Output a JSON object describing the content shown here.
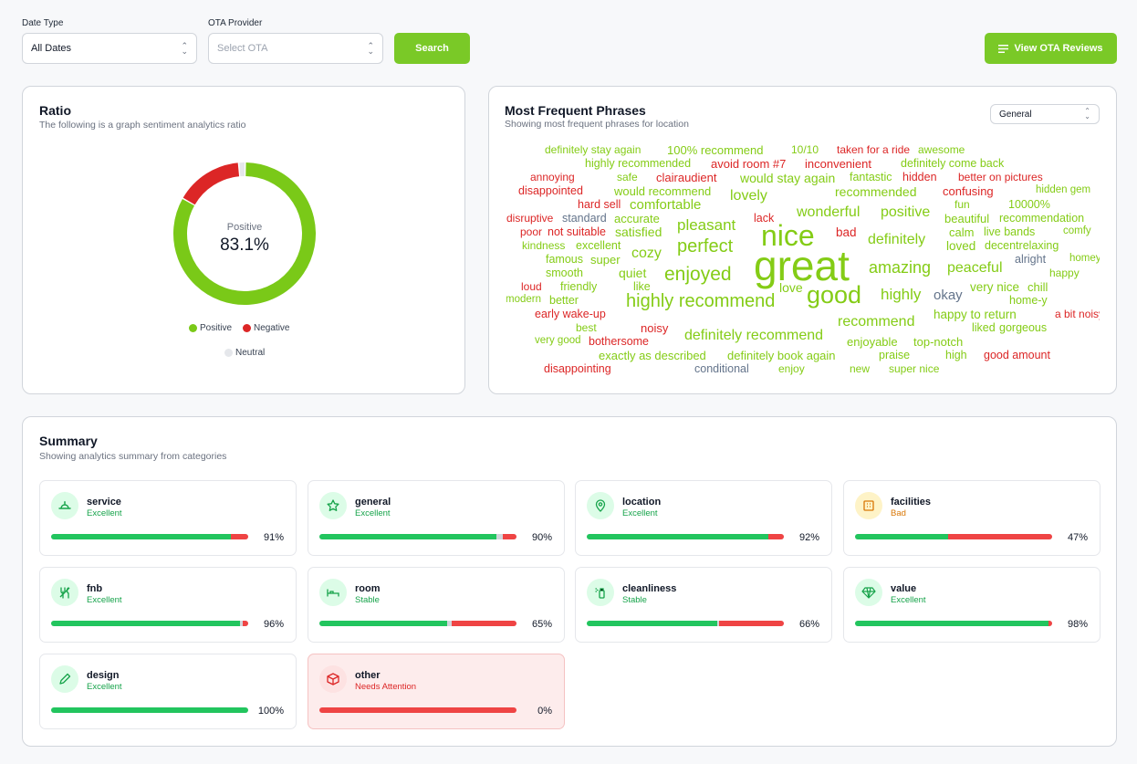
{
  "filters": {
    "date_type_label": "Date Type",
    "date_type_value": "All Dates",
    "ota_label": "OTA Provider",
    "ota_placeholder": "Select OTA",
    "search_label": "Search",
    "view_reviews_label": "View OTA Reviews"
  },
  "ratio": {
    "title": "Ratio",
    "subtitle": "The following is a graph sentiment analytics ratio",
    "center_label": "Positive",
    "center_value": "83.1%",
    "legend": [
      {
        "label": "Positive",
        "color": "#7ac918"
      },
      {
        "label": "Negative",
        "color": "#dc2626"
      },
      {
        "label": "Neutral",
        "color": "#e5e7eb"
      }
    ]
  },
  "chart_data": {
    "type": "pie",
    "style": "donut",
    "slices": [
      {
        "label": "Positive",
        "value": 83.1,
        "color": "#7ac918"
      },
      {
        "label": "Negative",
        "value": 15.4,
        "color": "#dc2626"
      },
      {
        "label": "Neutral",
        "value": 1.5,
        "color": "#e5e7eb"
      }
    ]
  },
  "phrases": {
    "title": "Most Frequent Phrases",
    "subtitle": "Showing most frequent phrases for location",
    "filter_value": "General",
    "colors": {
      "positive": "#84cc16",
      "negative": "#dc2626",
      "neutral": "#64748b"
    },
    "words": [
      {
        "t": "definitely stay again",
        "s": "positive",
        "w": 12
      },
      {
        "t": "100% recommend",
        "s": "positive",
        "w": 13
      },
      {
        "t": "10/10",
        "s": "positive",
        "w": 12
      },
      {
        "t": "taken for a ride",
        "s": "negative",
        "w": 12
      },
      {
        "t": "awesome",
        "s": "positive",
        "w": 12
      },
      {
        "t": "highly recommended",
        "s": "positive",
        "w": 12.5
      },
      {
        "t": "avoid room #7",
        "s": "negative",
        "w": 13
      },
      {
        "t": "inconvenient",
        "s": "negative",
        "w": 13
      },
      {
        "t": "definitely come back",
        "s": "positive",
        "w": 12.5
      },
      {
        "t": "annoying",
        "s": "negative",
        "w": 12
      },
      {
        "t": "safe",
        "s": "positive",
        "w": 12
      },
      {
        "t": "clairaudient",
        "s": "negative",
        "w": 13
      },
      {
        "t": "would stay again",
        "s": "positive",
        "w": 14
      },
      {
        "t": "fantastic",
        "s": "positive",
        "w": 12.5
      },
      {
        "t": "hidden",
        "s": "negative",
        "w": 12.5
      },
      {
        "t": "better on pictures",
        "s": "negative",
        "w": 12
      },
      {
        "t": "disappointed",
        "s": "negative",
        "w": 12.5
      },
      {
        "t": "would recommend",
        "s": "positive",
        "w": 13
      },
      {
        "t": "lovely",
        "s": "positive",
        "w": 16
      },
      {
        "t": "recommended",
        "s": "positive",
        "w": 14
      },
      {
        "t": "confusing",
        "s": "negative",
        "w": 13
      },
      {
        "t": "hidden gem",
        "s": "positive",
        "w": 11.5
      },
      {
        "t": "hard sell",
        "s": "negative",
        "w": 12.5
      },
      {
        "t": "comfortable",
        "s": "positive",
        "w": 15
      },
      {
        "t": "fun",
        "s": "positive",
        "w": 12
      },
      {
        "t": "10000%",
        "s": "positive",
        "w": 12.5
      },
      {
        "t": "disruptive",
        "s": "negative",
        "w": 12
      },
      {
        "t": "standard",
        "s": "neutral",
        "w": 12.5
      },
      {
        "t": "accurate",
        "s": "positive",
        "w": 13
      },
      {
        "t": "lack",
        "s": "negative",
        "w": 12.5
      },
      {
        "t": "wonderful",
        "s": "positive",
        "w": 16
      },
      {
        "t": "positive",
        "s": "positive",
        "w": 16
      },
      {
        "t": "beautiful",
        "s": "positive",
        "w": 13
      },
      {
        "t": "recommendation",
        "s": "positive",
        "w": 12.5
      },
      {
        "t": "poor",
        "s": "negative",
        "w": 12
      },
      {
        "t": "not suitable",
        "s": "negative",
        "w": 12.5
      },
      {
        "t": "satisfied",
        "s": "positive",
        "w": 14
      },
      {
        "t": "pleasant",
        "s": "positive",
        "w": 17
      },
      {
        "t": "nice",
        "s": "positive",
        "w": 32
      },
      {
        "t": "bad",
        "s": "negative",
        "w": 13.5
      },
      {
        "t": "calm",
        "s": "positive",
        "w": 13
      },
      {
        "t": "live bands",
        "s": "positive",
        "w": 12.5
      },
      {
        "t": "comfy",
        "s": "positive",
        "w": 11.5
      },
      {
        "t": "kindness",
        "s": "positive",
        "w": 12
      },
      {
        "t": "excellent",
        "s": "positive",
        "w": 12.5
      },
      {
        "t": "perfect",
        "s": "positive",
        "w": 20
      },
      {
        "t": "definitely",
        "s": "positive",
        "w": 16
      },
      {
        "t": "loved",
        "s": "positive",
        "w": 13.5
      },
      {
        "t": "decentrelaxing",
        "s": "positive",
        "w": 12.5
      },
      {
        "t": "cozy",
        "s": "positive",
        "w": 16
      },
      {
        "t": "famous",
        "s": "positive",
        "w": 12.5
      },
      {
        "t": "super",
        "s": "positive",
        "w": 13
      },
      {
        "t": "great",
        "s": "positive",
        "w": 46
      },
      {
        "t": "alright",
        "s": "neutral",
        "w": 12.5
      },
      {
        "t": "homey",
        "s": "positive",
        "w": 11.5
      },
      {
        "t": "amazing",
        "s": "positive",
        "w": 18
      },
      {
        "t": "peaceful",
        "s": "positive",
        "w": 16
      },
      {
        "t": "smooth",
        "s": "positive",
        "w": 12.5
      },
      {
        "t": "quiet",
        "s": "positive",
        "w": 14
      },
      {
        "t": "enjoyed",
        "s": "positive",
        "w": 21
      },
      {
        "t": "happy",
        "s": "positive",
        "w": 12
      },
      {
        "t": "loud",
        "s": "negative",
        "w": 12
      },
      {
        "t": "friendly",
        "s": "positive",
        "w": 12.5
      },
      {
        "t": "like",
        "s": "positive",
        "w": 12.5
      },
      {
        "t": "love",
        "s": "positive",
        "w": 14
      },
      {
        "t": "very nice",
        "s": "positive",
        "w": 13.5
      },
      {
        "t": "chill",
        "s": "positive",
        "w": 13
      },
      {
        "t": "good",
        "s": "positive",
        "w": 27
      },
      {
        "t": "highly",
        "s": "positive",
        "w": 17
      },
      {
        "t": "okay",
        "s": "neutral",
        "w": 15
      },
      {
        "t": "modern",
        "s": "positive",
        "w": 11.5
      },
      {
        "t": "better",
        "s": "positive",
        "w": 12.5
      },
      {
        "t": "highly recommend",
        "s": "positive",
        "w": 20
      },
      {
        "t": "home-y",
        "s": "positive",
        "w": 12.5
      },
      {
        "t": "early wake-up",
        "s": "negative",
        "w": 12.5
      },
      {
        "t": "happy to return",
        "s": "positive",
        "w": 13.5
      },
      {
        "t": "a bit noisy",
        "s": "negative",
        "w": 12
      },
      {
        "t": "best",
        "s": "positive",
        "w": 12
      },
      {
        "t": "noisy",
        "s": "negative",
        "w": 13
      },
      {
        "t": "definitely recommend",
        "s": "positive",
        "w": 16
      },
      {
        "t": "recommend",
        "s": "positive",
        "w": 16
      },
      {
        "t": "liked",
        "s": "positive",
        "w": 12.5
      },
      {
        "t": "gorgeous",
        "s": "positive",
        "w": 12.5
      },
      {
        "t": "very good",
        "s": "positive",
        "w": 11.5
      },
      {
        "t": "bothersome",
        "s": "negative",
        "w": 12.5
      },
      {
        "t": "enjoyable",
        "s": "positive",
        "w": 13
      },
      {
        "t": "top-notch",
        "s": "positive",
        "w": 13
      },
      {
        "t": "exactly as described",
        "s": "positive",
        "w": 13
      },
      {
        "t": "definitely book again",
        "s": "positive",
        "w": 13
      },
      {
        "t": "praise",
        "s": "positive",
        "w": 12.5
      },
      {
        "t": "high",
        "s": "positive",
        "w": 12.5
      },
      {
        "t": "good amount",
        "s": "negative",
        "w": 12.5
      },
      {
        "t": "disappointing",
        "s": "negative",
        "w": 12.5
      },
      {
        "t": "conditional",
        "s": "neutral",
        "w": 12.5
      },
      {
        "t": "enjoy",
        "s": "positive",
        "w": 12
      },
      {
        "t": "new",
        "s": "positive",
        "w": 12
      },
      {
        "t": "super nice",
        "s": "positive",
        "w": 12
      }
    ]
  },
  "summary": {
    "title": "Summary",
    "subtitle": "Showing analytics summary from categories",
    "colors": {
      "Excellent": "#16a34a",
      "Stable": "#16a34a",
      "Bad": "#d97706",
      "Needs Attention": "#dc2626"
    },
    "categories": [
      {
        "name": "service",
        "status": "Excellent",
        "pct": "91%",
        "pos": 91,
        "neu": 0,
        "neg": 9,
        "icon": "bell-icon"
      },
      {
        "name": "general",
        "status": "Excellent",
        "pct": "90%",
        "pos": 90,
        "neu": 3,
        "neg": 7,
        "icon": "star-icon"
      },
      {
        "name": "location",
        "status": "Excellent",
        "pct": "92%",
        "pos": 92,
        "neu": 0,
        "neg": 8,
        "icon": "map-pin-icon"
      },
      {
        "name": "facilities",
        "status": "Bad",
        "pct": "47%",
        "pos": 47,
        "neu": 0,
        "neg": 53,
        "icon": "building-icon"
      },
      {
        "name": "fnb",
        "status": "Excellent",
        "pct": "96%",
        "pos": 96,
        "neu": 1,
        "neg": 3,
        "icon": "utensils-icon"
      },
      {
        "name": "room",
        "status": "Stable",
        "pct": "65%",
        "pos": 65,
        "neu": 2,
        "neg": 33,
        "icon": "bed-icon"
      },
      {
        "name": "cleanliness",
        "status": "Stable",
        "pct": "66%",
        "pos": 66,
        "neu": 1,
        "neg": 33,
        "icon": "spray-icon"
      },
      {
        "name": "value",
        "status": "Excellent",
        "pct": "98%",
        "pos": 98,
        "neu": 0,
        "neg": 2,
        "icon": "diamond-icon"
      },
      {
        "name": "design",
        "status": "Excellent",
        "pct": "100%",
        "pos": 100,
        "neu": 0,
        "neg": 0,
        "icon": "pencil-icon"
      },
      {
        "name": "other",
        "status": "Needs Attention",
        "pct": "0%",
        "pos": 0,
        "neu": 0,
        "neg": 100,
        "icon": "box-icon"
      }
    ]
  }
}
